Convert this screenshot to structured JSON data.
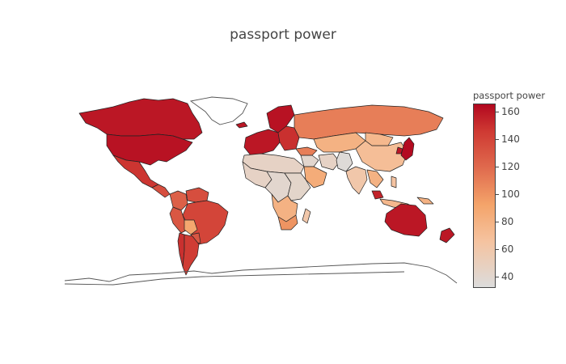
{
  "chart_data": {
    "type": "choropleth",
    "title": "passport power",
    "colorbar": {
      "title": "passport power",
      "range": [
        32,
        166
      ],
      "ticks": [
        40,
        60,
        80,
        100,
        120,
        140,
        160
      ],
      "colorscale": [
        [
          0.0,
          "#dcdcdc"
        ],
        [
          0.25,
          "#f5c3a0"
        ],
        [
          0.45,
          "#f4a46a"
        ],
        [
          0.65,
          "#e06b4e"
        ],
        [
          0.85,
          "#cf3a33"
        ],
        [
          1.0,
          "#b2081f"
        ]
      ]
    },
    "regions": [
      {
        "name": "Canada",
        "value": 160
      },
      {
        "name": "United States",
        "value": 162
      },
      {
        "name": "Mexico",
        "value": 148
      },
      {
        "name": "Central America",
        "value": 135
      },
      {
        "name": "Colombia",
        "value": 125
      },
      {
        "name": "Venezuela",
        "value": 135
      },
      {
        "name": "Brazil",
        "value": 140
      },
      {
        "name": "Peru",
        "value": 130
      },
      {
        "name": "Bolivia",
        "value": 90
      },
      {
        "name": "Paraguay",
        "value": 130
      },
      {
        "name": "Chile",
        "value": 150
      },
      {
        "name": "Argentina",
        "value": 145
      },
      {
        "name": "Western Europe",
        "value": 160
      },
      {
        "name": "Scandinavia",
        "value": 162
      },
      {
        "name": "Iceland",
        "value": 160
      },
      {
        "name": "Eastern Europe",
        "value": 150
      },
      {
        "name": "Russia",
        "value": 110
      },
      {
        "name": "Central Asia",
        "value": 80
      },
      {
        "name": "Middle East",
        "value": 40
      },
      {
        "name": "Turkey",
        "value": 110
      },
      {
        "name": "Arabian Peninsula",
        "value": 85
      },
      {
        "name": "Iran",
        "value": 45
      },
      {
        "name": "Afghanistan Pakistan",
        "value": 35
      },
      {
        "name": "India",
        "value": 60
      },
      {
        "name": "China",
        "value": 70
      },
      {
        "name": "Mongolia",
        "value": 75
      },
      {
        "name": "Japan",
        "value": 165
      },
      {
        "name": "South Korea",
        "value": 160
      },
      {
        "name": "Southeast Asia",
        "value": 80
      },
      {
        "name": "Malaysia",
        "value": 155
      },
      {
        "name": "Indonesia",
        "value": 75
      },
      {
        "name": "Philippines",
        "value": 65
      },
      {
        "name": "Papua New Guinea",
        "value": 80
      },
      {
        "name": "Australia",
        "value": 160
      },
      {
        "name": "New Zealand",
        "value": 160
      },
      {
        "name": "North Africa",
        "value": 45
      },
      {
        "name": "West Africa",
        "value": 45
      },
      {
        "name": "Central Africa",
        "value": 40
      },
      {
        "name": "East Africa",
        "value": 42
      },
      {
        "name": "Southern Africa",
        "value": 80
      },
      {
        "name": "South Africa",
        "value": 100
      },
      {
        "name": "Madagascar",
        "value": 60
      }
    ]
  }
}
